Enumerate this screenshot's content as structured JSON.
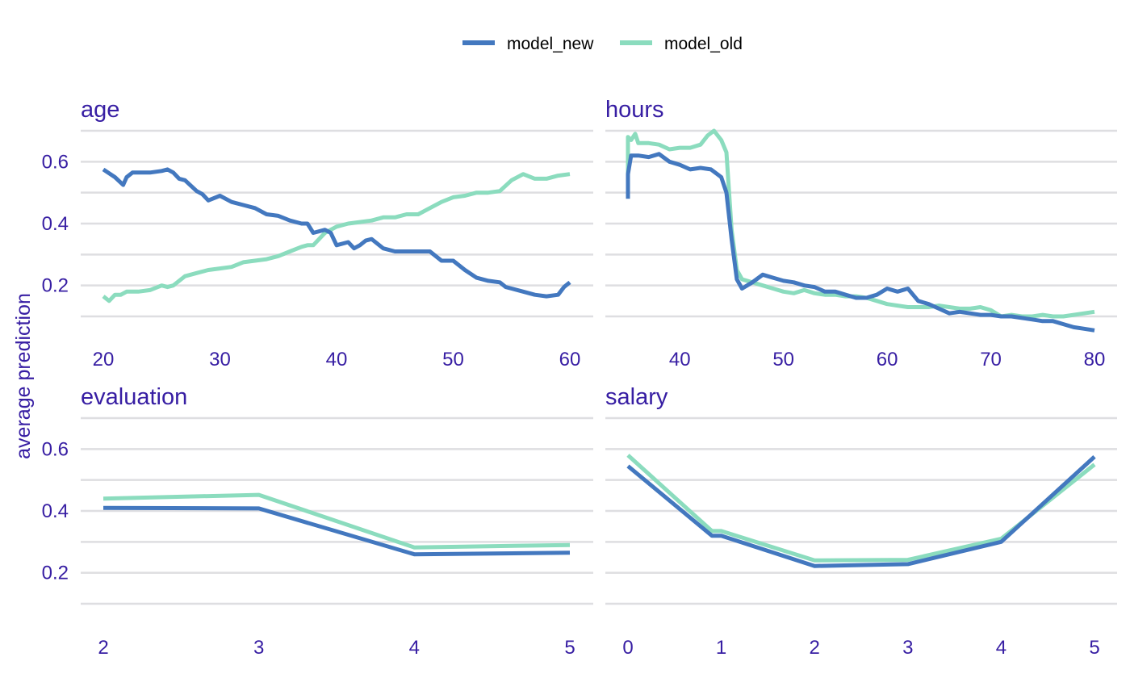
{
  "chart_data": {
    "type": "line",
    "ylabel": "average prediction",
    "legend": {
      "position": "top",
      "entries": [
        {
          "name": "model_new",
          "color": "#4378bf"
        },
        {
          "name": "model_old",
          "color": "#8bdcbe"
        }
      ]
    },
    "grid": true,
    "colors": {
      "text": "#371ea3",
      "grid": "#dedee1",
      "model_new": "#4378bf",
      "model_old": "#8bdcbe"
    },
    "panels": [
      {
        "title": "age",
        "xlim": [
          20,
          60
        ],
        "ylim": [
          0.06,
          0.72
        ],
        "xticks": [
          20,
          30,
          40,
          50,
          60
        ],
        "yticks": [
          0.2,
          0.4,
          0.6
        ],
        "gridlines": [
          0.1,
          0.2,
          0.3,
          0.4,
          0.5,
          0.6,
          0.7
        ],
        "series": [
          {
            "name": "model_new",
            "x": [
              20,
              21,
              21.7,
              22,
              22.5,
              23,
              24,
              25,
              25.5,
              26,
              26.5,
              27,
              28,
              28.5,
              29,
              30,
              31,
              32,
              33,
              34,
              35,
              36,
              37,
              37.5,
              38,
              39,
              39.5,
              40,
              41,
              41.5,
              42,
              42.5,
              43,
              44,
              45,
              46,
              47,
              48,
              49,
              50,
              51,
              52,
              53,
              54,
              54.5,
              55,
              56,
              57,
              58,
              59,
              59.5,
              60
            ],
            "y": [
              0.575,
              0.55,
              0.525,
              0.55,
              0.565,
              0.565,
              0.565,
              0.57,
              0.575,
              0.565,
              0.545,
              0.54,
              0.505,
              0.495,
              0.475,
              0.49,
              0.47,
              0.46,
              0.45,
              0.43,
              0.425,
              0.41,
              0.4,
              0.4,
              0.37,
              0.38,
              0.37,
              0.33,
              0.34,
              0.32,
              0.33,
              0.345,
              0.35,
              0.32,
              0.31,
              0.31,
              0.31,
              0.31,
              0.28,
              0.28,
              0.25,
              0.225,
              0.215,
              0.21,
              0.195,
              0.19,
              0.18,
              0.17,
              0.165,
              0.17,
              0.195,
              0.21
            ]
          },
          {
            "name": "model_old",
            "x": [
              20,
              20.5,
              21,
              21.5,
              22,
              23,
              24,
              25,
              25.5,
              26,
              27,
              28,
              29,
              30,
              31,
              32,
              33,
              34,
              35,
              36,
              37,
              37.5,
              38,
              39,
              40,
              41,
              42,
              43,
              44,
              45,
              46,
              47,
              48,
              49,
              50,
              51,
              52,
              53,
              54,
              55,
              56,
              57,
              58,
              59,
              60
            ],
            "y": [
              0.165,
              0.15,
              0.17,
              0.17,
              0.18,
              0.18,
              0.185,
              0.2,
              0.195,
              0.2,
              0.23,
              0.24,
              0.25,
              0.255,
              0.26,
              0.275,
              0.28,
              0.285,
              0.295,
              0.31,
              0.325,
              0.33,
              0.33,
              0.37,
              0.39,
              0.4,
              0.405,
              0.41,
              0.42,
              0.42,
              0.43,
              0.43,
              0.45,
              0.47,
              0.485,
              0.49,
              0.5,
              0.5,
              0.505,
              0.54,
              0.56,
              0.545,
              0.545,
              0.555,
              0.56
            ]
          }
        ]
      },
      {
        "title": "hours",
        "xlim": [
          35,
          80
        ],
        "ylim": [
          0.06,
          0.72
        ],
        "xticks": [
          40,
          50,
          60,
          70,
          80
        ],
        "yticks": [
          0.2,
          0.4,
          0.6
        ],
        "gridlines": [
          0.1,
          0.2,
          0.3,
          0.4,
          0.5,
          0.6,
          0.7
        ],
        "series": [
          {
            "name": "model_new",
            "x": [
              35,
              35,
              35.3,
              36,
              37,
              38,
              39,
              40,
              41,
              42,
              43,
              44,
              44.5,
              45,
              45.5,
              46,
              47,
              48,
              49,
              50,
              51,
              52,
              53,
              54,
              55,
              56,
              57,
              58,
              59,
              60,
              61,
              62,
              63,
              64,
              65,
              66,
              67,
              68,
              69,
              70,
              71,
              72,
              73,
              74,
              75,
              76,
              77,
              78,
              79,
              80
            ],
            "y": [
              0.48,
              0.56,
              0.62,
              0.62,
              0.615,
              0.625,
              0.6,
              0.59,
              0.575,
              0.58,
              0.575,
              0.55,
              0.5,
              0.35,
              0.22,
              0.19,
              0.21,
              0.235,
              0.225,
              0.215,
              0.21,
              0.2,
              0.195,
              0.18,
              0.18,
              0.17,
              0.16,
              0.16,
              0.17,
              0.19,
              0.18,
              0.19,
              0.15,
              0.14,
              0.125,
              0.11,
              0.115,
              0.11,
              0.105,
              0.105,
              0.1,
              0.1,
              0.095,
              0.09,
              0.085,
              0.085,
              0.075,
              0.065,
              0.06,
              0.055
            ]
          },
          {
            "name": "model_old",
            "x": [
              35,
              35,
              35.3,
              35.7,
              36,
              37,
              38,
              39,
              40,
              41,
              42,
              42.7,
              43.3,
              44,
              44.5,
              45,
              45.5,
              46,
              47,
              48,
              49,
              50,
              51,
              52,
              53,
              54,
              55,
              56,
              57,
              58,
              59,
              60,
              61,
              62,
              63,
              64,
              65,
              66,
              67,
              68,
              69,
              70,
              71,
              72,
              73,
              74,
              75,
              76,
              77,
              78,
              79,
              80
            ],
            "y": [
              0.55,
              0.68,
              0.67,
              0.69,
              0.66,
              0.66,
              0.655,
              0.64,
              0.645,
              0.645,
              0.655,
              0.685,
              0.7,
              0.67,
              0.63,
              0.38,
              0.25,
              0.22,
              0.21,
              0.2,
              0.19,
              0.18,
              0.175,
              0.185,
              0.175,
              0.17,
              0.17,
              0.165,
              0.165,
              0.16,
              0.15,
              0.14,
              0.135,
              0.13,
              0.13,
              0.13,
              0.135,
              0.13,
              0.125,
              0.125,
              0.13,
              0.12,
              0.1,
              0.105,
              0.1,
              0.1,
              0.105,
              0.1,
              0.1,
              0.105,
              0.11,
              0.115
            ]
          }
        ]
      },
      {
        "title": "evaluation",
        "xlim": [
          2,
          5
        ],
        "ylim": [
          0.06,
          0.72
        ],
        "xticks": [
          2,
          3,
          4,
          5
        ],
        "yticks": [
          0.2,
          0.4,
          0.6
        ],
        "gridlines": [
          0.1,
          0.2,
          0.3,
          0.4,
          0.5,
          0.6,
          0.7
        ],
        "series": [
          {
            "name": "model_new",
            "x": [
              2,
              3,
              4,
              5
            ],
            "y": [
              0.41,
              0.408,
              0.26,
              0.265
            ]
          },
          {
            "name": "model_old",
            "x": [
              2,
              3,
              4,
              5
            ],
            "y": [
              0.44,
              0.452,
              0.282,
              0.29
            ]
          }
        ]
      },
      {
        "title": "salary",
        "xlim": [
          0,
          5
        ],
        "ylim": [
          0.06,
          0.72
        ],
        "xticks": [
          0,
          1,
          2,
          3,
          4,
          5
        ],
        "yticks": [
          0.2,
          0.4,
          0.6
        ],
        "gridlines": [
          0.1,
          0.2,
          0.3,
          0.4,
          0.5,
          0.6,
          0.7
        ],
        "series": [
          {
            "name": "model_new",
            "x": [
              0,
              0.9,
              1,
              2,
              3,
              4,
              5
            ],
            "y": [
              0.545,
              0.32,
              0.32,
              0.222,
              0.228,
              0.3,
              0.575
            ]
          },
          {
            "name": "model_old",
            "x": [
              0,
              0.9,
              1,
              2,
              3,
              4,
              5
            ],
            "y": [
              0.58,
              0.335,
              0.335,
              0.24,
              0.242,
              0.31,
              0.55
            ]
          }
        ]
      }
    ]
  }
}
